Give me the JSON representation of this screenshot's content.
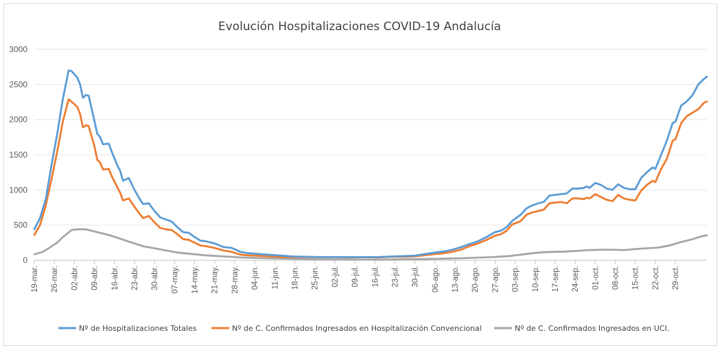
{
  "chart_data": {
    "type": "line",
    "title": "Evolución Hospitalizaciones COVID-19 Andalucía",
    "ylim": [
      0,
      3000
    ],
    "y_ticks": [
      0,
      500,
      1000,
      1500,
      2000,
      2500,
      3000
    ],
    "grid": true,
    "legend_position": "bottom",
    "x_tick_labels": [
      "19-mar.",
      "26-mar.",
      "02-abr.",
      "09-abr.",
      "16-abr.",
      "23-abr.",
      "30-abr.",
      "07-may.",
      "14-may.",
      "21-may.",
      "28-may.",
      "04-jun.",
      "11-jun.",
      "18-jun.",
      "25-jun.",
      "02-jul.",
      "09-jul.",
      "16-jul.",
      "23-jul.",
      "30-jul.",
      "06-ago.",
      "13-ago.",
      "20-ago.",
      "27-ago.",
      "03-sep.",
      "10-sep.",
      "17-sep.",
      "24-sep.",
      "01-oct.",
      "08-oct.",
      "15-oct.",
      "22-oct.",
      "29-oct."
    ],
    "x_tick_day_index": [
      0,
      7,
      14,
      21,
      28,
      35,
      42,
      49,
      56,
      63,
      70,
      77,
      84,
      91,
      98,
      105,
      112,
      119,
      126,
      133,
      140,
      147,
      154,
      161,
      168,
      175,
      182,
      189,
      196,
      203,
      210,
      217,
      224
    ],
    "x_range_days": [
      0,
      226
    ],
    "series": [
      {
        "name": "Nº de Hospitalizaciones Totales",
        "color": "#5b9bd5",
        "points": [
          [
            0,
            440
          ],
          [
            2,
            600
          ],
          [
            4,
            870
          ],
          [
            6,
            1350
          ],
          [
            8,
            1800
          ],
          [
            10,
            2300
          ],
          [
            12,
            2700
          ],
          [
            13,
            2690
          ],
          [
            15,
            2600
          ],
          [
            16,
            2500
          ],
          [
            17,
            2310
          ],
          [
            18,
            2350
          ],
          [
            19,
            2340
          ],
          [
            21,
            1980
          ],
          [
            22,
            1800
          ],
          [
            23,
            1750
          ],
          [
            24,
            1650
          ],
          [
            26,
            1660
          ],
          [
            27,
            1550
          ],
          [
            29,
            1350
          ],
          [
            30,
            1270
          ],
          [
            31,
            1130
          ],
          [
            33,
            1170
          ],
          [
            35,
            1000
          ],
          [
            37,
            860
          ],
          [
            38,
            800
          ],
          [
            40,
            810
          ],
          [
            42,
            700
          ],
          [
            44,
            610
          ],
          [
            46,
            580
          ],
          [
            48,
            550
          ],
          [
            50,
            470
          ],
          [
            52,
            400
          ],
          [
            54,
            390
          ],
          [
            56,
            330
          ],
          [
            58,
            280
          ],
          [
            60,
            270
          ],
          [
            63,
            240
          ],
          [
            66,
            190
          ],
          [
            69,
            175
          ],
          [
            72,
            120
          ],
          [
            75,
            100
          ],
          [
            80,
            85
          ],
          [
            85,
            70
          ],
          [
            90,
            55
          ],
          [
            95,
            50
          ],
          [
            100,
            45
          ],
          [
            105,
            45
          ],
          [
            110,
            45
          ],
          [
            115,
            45
          ],
          [
            120,
            45
          ],
          [
            125,
            55
          ],
          [
            130,
            60
          ],
          [
            133,
            65
          ],
          [
            136,
            85
          ],
          [
            140,
            110
          ],
          [
            143,
            125
          ],
          [
            146,
            150
          ],
          [
            149,
            185
          ],
          [
            152,
            230
          ],
          [
            155,
            270
          ],
          [
            158,
            330
          ],
          [
            161,
            400
          ],
          [
            163,
            420
          ],
          [
            165,
            470
          ],
          [
            167,
            560
          ],
          [
            169,
            620
          ],
          [
            170,
            650
          ],
          [
            172,
            740
          ],
          [
            174,
            780
          ],
          [
            176,
            810
          ],
          [
            178,
            830
          ],
          [
            180,
            920
          ],
          [
            182,
            930
          ],
          [
            184,
            940
          ],
          [
            186,
            950
          ],
          [
            188,
            1020
          ],
          [
            190,
            1020
          ],
          [
            192,
            1030
          ],
          [
            193,
            1050
          ],
          [
            194,
            1030
          ],
          [
            196,
            1100
          ],
          [
            198,
            1070
          ],
          [
            200,
            1020
          ],
          [
            202,
            1000
          ],
          [
            204,
            1080
          ],
          [
            206,
            1030
          ],
          [
            208,
            1010
          ],
          [
            210,
            1010
          ],
          [
            212,
            1170
          ],
          [
            214,
            1250
          ],
          [
            216,
            1320
          ],
          [
            217,
            1300
          ],
          [
            219,
            1500
          ],
          [
            221,
            1700
          ],
          [
            223,
            1950
          ],
          [
            224,
            1970
          ],
          [
            226,
            2200
          ],
          [
            228,
            2260
          ],
          [
            230,
            2350
          ],
          [
            232,
            2500
          ],
          [
            234,
            2580
          ],
          [
            235,
            2610
          ]
        ]
      },
      {
        "name": "Nº de C. Confirmados Ingresados en Hospitalización Convencional",
        "color": "#ed7d31",
        "points": [
          [
            0,
            360
          ],
          [
            2,
            500
          ],
          [
            4,
            780
          ],
          [
            6,
            1150
          ],
          [
            8,
            1550
          ],
          [
            10,
            1980
          ],
          [
            12,
            2290
          ],
          [
            14,
            2220
          ],
          [
            15,
            2180
          ],
          [
            16,
            2080
          ],
          [
            17,
            1890
          ],
          [
            18,
            1920
          ],
          [
            19,
            1910
          ],
          [
            21,
            1620
          ],
          [
            22,
            1430
          ],
          [
            23,
            1390
          ],
          [
            24,
            1290
          ],
          [
            26,
            1300
          ],
          [
            27,
            1200
          ],
          [
            29,
            1040
          ],
          [
            30,
            960
          ],
          [
            31,
            850
          ],
          [
            33,
            880
          ],
          [
            35,
            760
          ],
          [
            37,
            650
          ],
          [
            38,
            600
          ],
          [
            40,
            630
          ],
          [
            42,
            540
          ],
          [
            44,
            460
          ],
          [
            46,
            440
          ],
          [
            48,
            430
          ],
          [
            50,
            370
          ],
          [
            52,
            300
          ],
          [
            54,
            290
          ],
          [
            56,
            250
          ],
          [
            58,
            210
          ],
          [
            60,
            200
          ],
          [
            63,
            175
          ],
          [
            66,
            140
          ],
          [
            69,
            120
          ],
          [
            72,
            80
          ],
          [
            75,
            70
          ],
          [
            80,
            60
          ],
          [
            85,
            50
          ],
          [
            90,
            45
          ],
          [
            95,
            45
          ],
          [
            100,
            45
          ],
          [
            105,
            45
          ],
          [
            110,
            40
          ],
          [
            115,
            45
          ],
          [
            120,
            40
          ],
          [
            125,
            50
          ],
          [
            130,
            50
          ],
          [
            133,
            55
          ],
          [
            136,
            70
          ],
          [
            140,
            90
          ],
          [
            143,
            100
          ],
          [
            146,
            120
          ],
          [
            149,
            150
          ],
          [
            152,
            200
          ],
          [
            155,
            240
          ],
          [
            158,
            290
          ],
          [
            161,
            350
          ],
          [
            163,
            370
          ],
          [
            165,
            420
          ],
          [
            167,
            510
          ],
          [
            169,
            540
          ],
          [
            170,
            560
          ],
          [
            172,
            650
          ],
          [
            174,
            680
          ],
          [
            176,
            700
          ],
          [
            178,
            720
          ],
          [
            180,
            810
          ],
          [
            182,
            820
          ],
          [
            184,
            830
          ],
          [
            186,
            810
          ],
          [
            188,
            880
          ],
          [
            190,
            880
          ],
          [
            192,
            870
          ],
          [
            193,
            890
          ],
          [
            194,
            880
          ],
          [
            196,
            940
          ],
          [
            198,
            900
          ],
          [
            200,
            860
          ],
          [
            202,
            840
          ],
          [
            204,
            930
          ],
          [
            206,
            880
          ],
          [
            208,
            860
          ],
          [
            210,
            850
          ],
          [
            212,
            990
          ],
          [
            214,
            1070
          ],
          [
            216,
            1130
          ],
          [
            217,
            1110
          ],
          [
            219,
            1300
          ],
          [
            221,
            1440
          ],
          [
            223,
            1700
          ],
          [
            224,
            1720
          ],
          [
            226,
            1950
          ],
          [
            228,
            2050
          ],
          [
            230,
            2100
          ],
          [
            232,
            2150
          ],
          [
            234,
            2240
          ],
          [
            235,
            2260
          ]
        ]
      },
      {
        "name": "Nº de C. Confirmados Ingresados en UCI.",
        "color": "#a5a5a5",
        "points": [
          [
            0,
            85
          ],
          [
            3,
            120
          ],
          [
            5,
            170
          ],
          [
            8,
            250
          ],
          [
            10,
            330
          ],
          [
            13,
            430
          ],
          [
            15,
            440
          ],
          [
            18,
            440
          ],
          [
            20,
            420
          ],
          [
            23,
            390
          ],
          [
            26,
            360
          ],
          [
            29,
            320
          ],
          [
            32,
            280
          ],
          [
            35,
            240
          ],
          [
            38,
            200
          ],
          [
            42,
            170
          ],
          [
            46,
            140
          ],
          [
            50,
            110
          ],
          [
            55,
            90
          ],
          [
            60,
            70
          ],
          [
            66,
            55
          ],
          [
            72,
            40
          ],
          [
            80,
            30
          ],
          [
            90,
            20
          ],
          [
            100,
            15
          ],
          [
            110,
            12
          ],
          [
            120,
            10
          ],
          [
            130,
            15
          ],
          [
            140,
            20
          ],
          [
            150,
            30
          ],
          [
            160,
            45
          ],
          [
            166,
            60
          ],
          [
            170,
            80
          ],
          [
            174,
            100
          ],
          [
            178,
            115
          ],
          [
            182,
            120
          ],
          [
            186,
            125
          ],
          [
            190,
            135
          ],
          [
            194,
            145
          ],
          [
            198,
            150
          ],
          [
            202,
            150
          ],
          [
            206,
            145
          ],
          [
            210,
            160
          ],
          [
            214,
            170
          ],
          [
            218,
            180
          ],
          [
            222,
            210
          ],
          [
            226,
            260
          ],
          [
            230,
            300
          ],
          [
            233,
            340
          ],
          [
            235,
            355
          ]
        ]
      }
    ]
  }
}
